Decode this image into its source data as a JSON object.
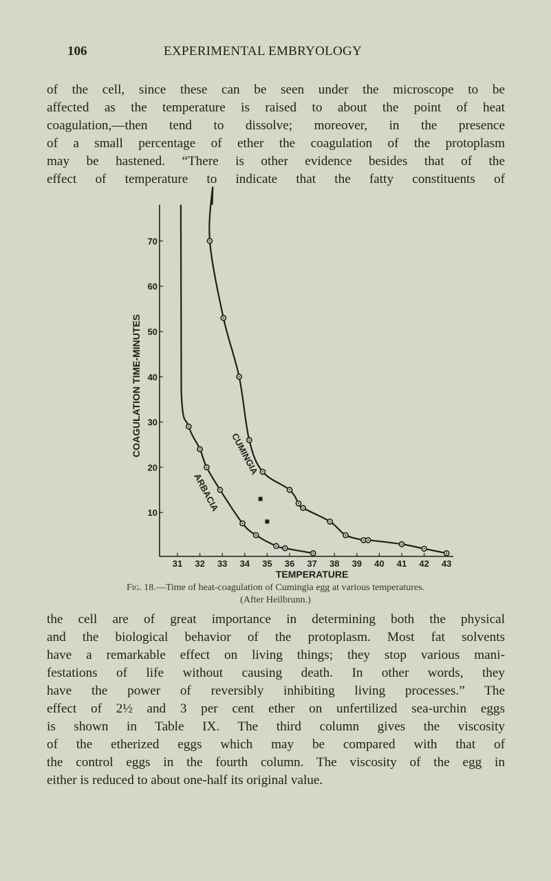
{
  "header": {
    "page_number": "106",
    "running_title": "EXPERIMENTAL EMBRYOLOGY"
  },
  "paragraph1": [
    "of the cell, since these can be seen under the microscope to be",
    "affected as the temperature is raised to about the point of heat",
    "coagulation,—then tend to dissolve; moreover, in the presence",
    "of a small percentage of ether the coagulation of the protoplasm",
    "may be hastened. “There is other evidence besides that of the",
    "effect of temperature to indicate that the fatty constituents of"
  ],
  "caption": {
    "fig_label": "Fig. 18.",
    "text": "—Time of heat-coagulation of Cumingia egg at various temperatures.",
    "credit": "(After Heilbrunn.)"
  },
  "paragraph2": [
    "the cell are of great importance in determining both the physical",
    "and the biological behavior of the protoplasm. Most fat solvents",
    "have a remarkable effect on living things; they stop various mani-",
    "festations of life without causing death. In other words, they",
    "have the power of reversibly inhibiting living processes.” The",
    "effect of 2½ and 3 per cent ether on unfertilized sea-urchin eggs",
    "is shown in Table IX. The third column gives the viscosity",
    "of the etherized eggs which may be compared with that of",
    "the control eggs in the fourth column. The viscosity of the egg in",
    "either is reduced to about one-half its original value."
  ],
  "chart_data": {
    "type": "scatter",
    "title": "",
    "xlabel": "TEMPERATURE",
    "ylabel": "COAGULATION TIME-MINUTES",
    "xlim": [
      30.2,
      43.3
    ],
    "ylim": [
      0,
      78
    ],
    "xticks": [
      31,
      32,
      33,
      34,
      35,
      36,
      37,
      38,
      39,
      40,
      41,
      42,
      43
    ],
    "yticks": [
      10,
      20,
      30,
      40,
      50,
      60,
      70
    ],
    "grid": false,
    "series": [
      {
        "name": "CUMINGIA",
        "marker": "circle-dot",
        "curve": true,
        "asymptote_x": 32.55,
        "points": [
          [
            32.44,
            70
          ],
          [
            33.05,
            53
          ],
          [
            33.75,
            40
          ],
          [
            34.2,
            26
          ],
          [
            34.8,
            19
          ],
          [
            36.0,
            15
          ],
          [
            36.4,
            12
          ],
          [
            36.6,
            11
          ],
          [
            37.8,
            8
          ],
          [
            38.5,
            5
          ],
          [
            39.3,
            3.9
          ],
          [
            39.5,
            3.9
          ],
          [
            41.0,
            3
          ],
          [
            42.0,
            2
          ],
          [
            43.0,
            1
          ]
        ]
      },
      {
        "name": "ARBACIA",
        "marker": "circle-dot",
        "curve": true,
        "asymptote_x": 31.15,
        "points": [
          [
            31.5,
            29
          ],
          [
            32.0,
            24
          ],
          [
            32.3,
            20
          ],
          [
            32.9,
            15
          ],
          [
            33.9,
            7.6
          ],
          [
            34.5,
            5
          ],
          [
            35.4,
            2.6
          ],
          [
            35.8,
            2.1
          ],
          [
            37.05,
            1
          ]
        ]
      },
      {
        "marker": "filled-square",
        "curve": false,
        "points": [
          [
            34.7,
            13
          ],
          [
            35.0,
            8
          ]
        ]
      }
    ],
    "color": "#1f1f1c"
  }
}
